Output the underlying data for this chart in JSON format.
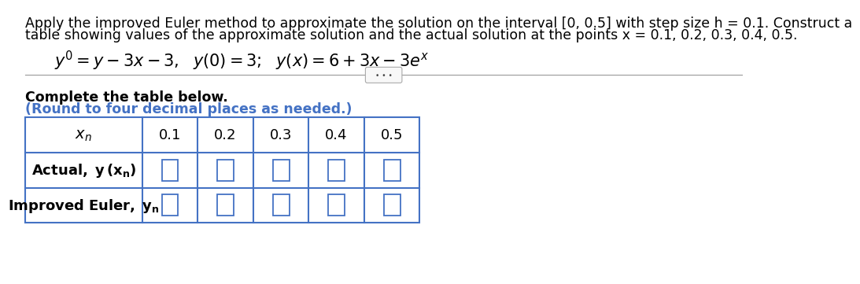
{
  "title_line1": "Apply the improved Euler method to approximate the solution on the interval [0, 0.5] with step size h = 0.1. Construct a",
  "title_line2": "table showing values of the approximate solution and the actual solution at the points x = 0.1, 0.2, 0.3, 0.4, 0.5.",
  "complete_text": "Complete the table below.",
  "round_text": "(Round to four decimal places as needed.)",
  "col_headers": [
    "0.1",
    "0.2",
    "0.3",
    "0.4",
    "0.5"
  ],
  "table_border_color": "#4472C4",
  "text_color_black": "#000000",
  "text_color_blue": "#4472C4",
  "bg_color": "#ffffff",
  "title_fontsize": 12.5,
  "eq_fontsize": 15,
  "table_header_fontsize": 13,
  "table_label_fontsize": 13,
  "table_data_fontsize": 13
}
